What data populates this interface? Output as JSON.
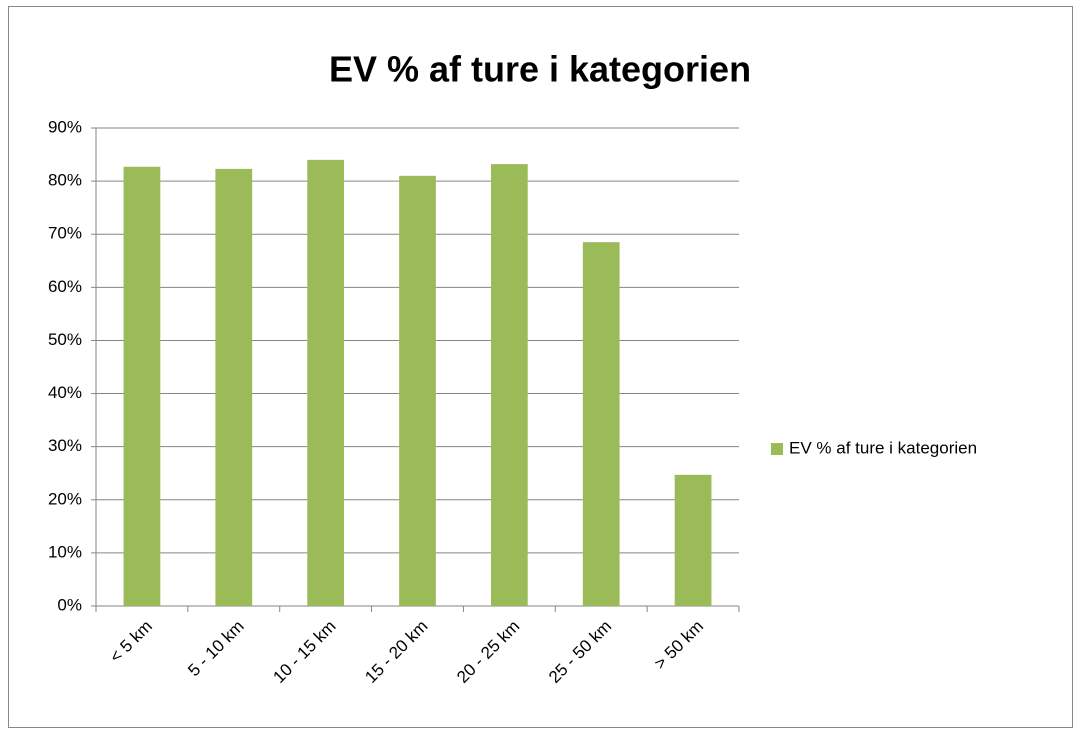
{
  "chart_data": {
    "type": "bar",
    "title": "EV % af ture i kategorien",
    "categories": [
      "< 5 km",
      "5 - 10 km",
      "10 - 15 km",
      "15 - 20 km",
      "20 - 25 km",
      "25 - 50 km",
      "> 50 km"
    ],
    "series": [
      {
        "name": "EV % af ture i kategorien",
        "color": "#9bbb59",
        "values": [
          82.7,
          82.3,
          84.0,
          81.0,
          83.2,
          68.5,
          24.7
        ]
      }
    ],
    "ylim": [
      0,
      90
    ],
    "yticks": [
      {
        "value": 0,
        "label": "0%"
      },
      {
        "value": 10,
        "label": "10%"
      },
      {
        "value": 20,
        "label": "20%"
      },
      {
        "value": 30,
        "label": "30%"
      },
      {
        "value": 40,
        "label": "40%"
      },
      {
        "value": 50,
        "label": "50%"
      },
      {
        "value": 60,
        "label": "60%"
      },
      {
        "value": 70,
        "label": "70%"
      },
      {
        "value": 80,
        "label": "80%"
      },
      {
        "value": 90,
        "label": "90%"
      }
    ],
    "grid": true,
    "legend": "right"
  }
}
